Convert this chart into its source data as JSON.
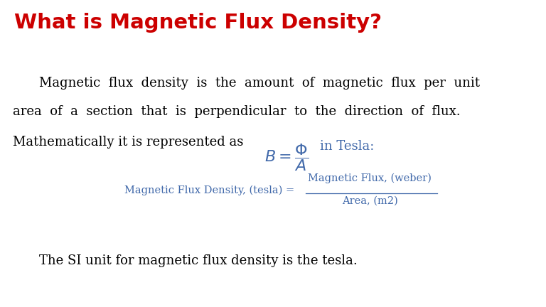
{
  "title": "What is Magnetic Flux Density?",
  "title_color": "#cc0000",
  "bg_color": "#ffffff",
  "body_text_color": "#000000",
  "blue_color": "#4169aa",
  "line1": "Magnetic  flux  density  is  the  amount  of  magnetic  flux  per  unit",
  "line2": "area  of  a  section  that  is  perpendicular  to  the  direction  of  flux.",
  "line3_prefix": "Mathematically it is represented as ",
  "fraction_label_left": "Magnetic Flux Density, (tesla) = ",
  "fraction_numerator": "Magnetic Flux, (weber)",
  "fraction_denominator": "Area, (m2)",
  "bottom_text": "The SI unit for magnetic flux density is the tesla.",
  "title_fontsize": 21,
  "body_fontsize": 13.0,
  "formula_fontsize": 14,
  "small_formula_fontsize": 10.5
}
